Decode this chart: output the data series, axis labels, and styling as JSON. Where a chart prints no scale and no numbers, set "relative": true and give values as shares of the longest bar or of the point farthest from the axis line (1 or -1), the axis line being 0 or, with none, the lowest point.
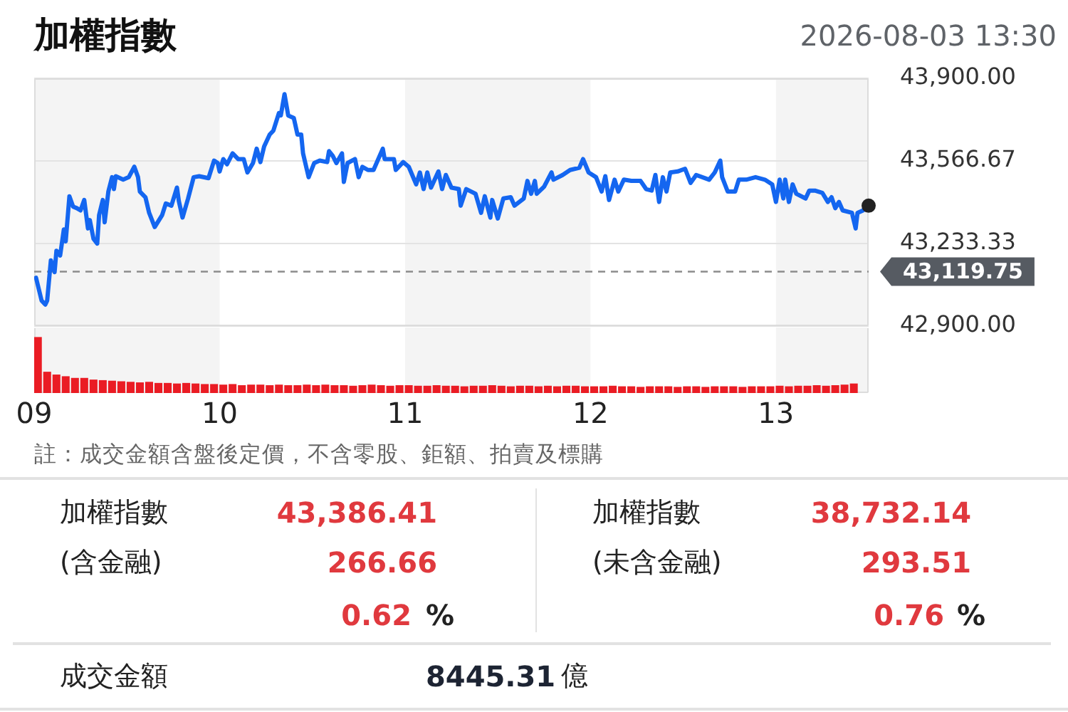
{
  "chart_data": [
    {
      "type": "line",
      "title": "加權指數",
      "subtitle": "2026-08-03 13:30",
      "x": [
        9.01,
        9.04,
        9.06,
        9.07,
        9.09,
        9.11,
        9.12,
        9.14,
        9.16,
        9.17,
        9.19,
        9.21,
        9.23,
        9.25,
        9.27,
        9.29,
        9.3,
        9.32,
        9.34,
        9.35,
        9.37,
        9.38,
        9.4,
        9.42,
        9.43,
        9.44,
        9.48,
        9.51,
        9.54,
        9.56,
        9.57,
        9.6,
        9.62,
        9.65,
        9.69,
        9.71,
        9.74,
        9.77,
        9.78,
        9.8,
        9.83,
        9.86,
        9.89,
        9.94,
        9.97,
        9.99,
        10,
        10.02,
        10.04,
        10.07,
        10.1,
        10.13,
        10.15,
        10.18,
        10.2,
        10.22,
        10.24,
        10.27,
        10.29,
        10.32,
        10.33,
        10.35,
        10.37,
        10.4,
        10.42,
        10.44,
        10.45,
        10.48,
        10.51,
        10.54,
        10.58,
        10.59,
        10.61,
        10.63,
        10.66,
        10.67,
        10.69,
        10.73,
        10.75,
        10.77,
        10.8,
        10.83,
        10.88,
        10.89,
        10.94,
        10.95,
        10.99,
        11.02,
        11.06,
        11.08,
        11.1,
        11.12,
        11.14,
        11.18,
        11.2,
        11.22,
        11.25,
        11.29,
        11.3,
        11.33,
        11.38,
        11.41,
        11.43,
        11.46,
        11.47,
        11.5,
        11.53,
        11.57,
        11.59,
        11.64,
        11.66,
        11.68,
        11.7,
        11.71,
        11.75,
        11.79,
        11.8,
        11.85,
        11.89,
        11.94,
        11.96,
        11.99,
        12.03,
        12.06,
        12.08,
        12.1,
        12.13,
        12.15,
        12.18,
        12.22,
        12.27,
        12.3,
        12.33,
        12.35,
        12.37,
        12.39,
        12.41,
        12.43,
        12.47,
        12.51,
        12.54,
        12.57,
        12.64,
        12.67,
        12.7,
        12.71,
        12.74,
        12.78,
        12.8,
        12.84,
        12.89,
        12.94,
        12.98,
        13,
        13.02,
        13.04,
        13.05,
        13.07,
        13.09,
        13.11,
        13.16,
        13.18,
        13.21,
        13.25,
        13.28,
        13.3,
        13.32,
        13.34,
        13.36,
        13.41,
        13.43,
        13.44,
        13.47,
        13.5
      ],
      "series": [
        {
          "color": "#1466f0",
          "values": [
            43095,
            43003,
            42987,
            43003,
            43165,
            43118,
            43204,
            43185,
            43290,
            43242,
            43424,
            43382,
            43376,
            43367,
            43409,
            43294,
            43328,
            43252,
            43233,
            43348,
            43409,
            43319,
            43443,
            43501,
            43453,
            43505,
            43491,
            43501,
            43543,
            43501,
            43443,
            43420,
            43357,
            43300,
            43348,
            43395,
            43386,
            43459,
            43405,
            43338,
            43415,
            43501,
            43505,
            43497,
            43568,
            43558,
            43524,
            43574,
            43553,
            43597,
            43574,
            43574,
            43520,
            43558,
            43616,
            43562,
            43625,
            43673,
            43689,
            43760,
            43750,
            43836,
            43750,
            43740,
            43673,
            43673,
            43597,
            43501,
            43558,
            43568,
            43562,
            43606,
            43587,
            43558,
            43597,
            43482,
            43558,
            43574,
            43501,
            43543,
            43530,
            43530,
            43616,
            43574,
            43574,
            43530,
            43562,
            43543,
            43472,
            43520,
            43453,
            43520,
            43459,
            43524,
            43453,
            43510,
            43459,
            43453,
            43386,
            43453,
            43434,
            43357,
            43424,
            43338,
            43409,
            43334,
            43415,
            43420,
            43386,
            43415,
            43486,
            43434,
            43486,
            43434,
            43463,
            43520,
            43491,
            43510,
            43530,
            43539,
            43574,
            43520,
            43501,
            43443,
            43505,
            43409,
            43491,
            43443,
            43491,
            43486,
            43486,
            43453,
            43447,
            43510,
            43401,
            43501,
            43443,
            43520,
            43524,
            43535,
            43478,
            43510,
            43491,
            43520,
            43568,
            43501,
            43443,
            43443,
            43491,
            43491,
            43501,
            43491,
            43472,
            43401,
            43491,
            43415,
            43491,
            43401,
            43472,
            43434,
            43415,
            43447,
            43447,
            43438,
            43401,
            43420,
            43376,
            43401,
            43367,
            43357,
            43294,
            43357,
            43367,
            43386
          ]
        },
        {
          "type": "scatter",
          "color": "#222222",
          "marker": "circle",
          "x": [
            13.5
          ],
          "values": [
            43386
          ]
        }
      ],
      "xlim": [
        9,
        13.5
      ],
      "ylim": [
        42900,
        43900
      ],
      "yticks": [
        {
          "value": 42900,
          "label": "42,900.00"
        },
        {
          "value": 43233.33,
          "label": "43,233.33"
        },
        {
          "value": 43566.67,
          "label": "43,566.67"
        },
        {
          "value": 43900,
          "label": "43,900.00"
        }
      ],
      "ref_lines": [
        {
          "axis": "y",
          "value": 43119.75,
          "label": "43,119.75",
          "color": "#8c8c8c",
          "line_style": "dashed"
        }
      ],
      "bands": [
        {
          "axis": "x",
          "from": 9,
          "to": 10,
          "color": "#f4f4f4"
        },
        {
          "axis": "x",
          "from": 11,
          "to": 12,
          "color": "#f4f4f4"
        },
        {
          "axis": "x",
          "from": 13,
          "to": 13.5,
          "color": "#f4f4f4"
        }
      ],
      "grid": "y",
      "tick_labels": "y",
      "marker": "none"
    },
    {
      "type": "bar",
      "relative": true,
      "x": [
        9.02,
        9.07,
        9.12,
        9.17,
        9.22,
        9.27,
        9.32,
        9.37,
        9.42,
        9.47,
        9.52,
        9.57,
        9.62,
        9.67,
        9.72,
        9.77,
        9.82,
        9.87,
        9.92,
        9.97,
        10.02,
        10.07,
        10.12,
        10.17,
        10.22,
        10.27,
        10.32,
        10.37,
        10.42,
        10.47,
        10.52,
        10.57,
        10.62,
        10.67,
        10.72,
        10.77,
        10.82,
        10.87,
        10.92,
        10.97,
        11.02,
        11.07,
        11.12,
        11.17,
        11.22,
        11.27,
        11.32,
        11.37,
        11.42,
        11.47,
        11.52,
        11.57,
        11.62,
        11.67,
        11.72,
        11.77,
        11.82,
        11.87,
        11.92,
        11.97,
        12.02,
        12.07,
        12.12,
        12.17,
        12.22,
        12.27,
        12.32,
        12.37,
        12.42,
        12.47,
        12.52,
        12.57,
        12.62,
        12.67,
        12.72,
        12.77,
        12.82,
        12.87,
        12.92,
        12.97,
        13.02,
        13.07,
        13.12,
        13.17,
        13.22,
        13.27,
        13.32,
        13.37,
        13.42
      ],
      "values": [
        1,
        0.38,
        0.33,
        0.3,
        0.27,
        0.27,
        0.24,
        0.23,
        0.22,
        0.21,
        0.2,
        0.19,
        0.2,
        0.18,
        0.18,
        0.17,
        0.18,
        0.17,
        0.16,
        0.16,
        0.15,
        0.16,
        0.14,
        0.15,
        0.15,
        0.14,
        0.15,
        0.14,
        0.14,
        0.15,
        0.14,
        0.15,
        0.14,
        0.14,
        0.13,
        0.14,
        0.15,
        0.14,
        0.13,
        0.14,
        0.14,
        0.13,
        0.13,
        0.14,
        0.13,
        0.13,
        0.12,
        0.13,
        0.13,
        0.14,
        0.13,
        0.12,
        0.13,
        0.13,
        0.12,
        0.13,
        0.12,
        0.13,
        0.13,
        0.12,
        0.12,
        0.12,
        0.13,
        0.12,
        0.12,
        0.11,
        0.12,
        0.12,
        0.12,
        0.11,
        0.12,
        0.12,
        0.11,
        0.12,
        0.12,
        0.12,
        0.11,
        0.12,
        0.12,
        0.12,
        0.13,
        0.12,
        0.13,
        0.13,
        0.14,
        0.13,
        0.14,
        0.15,
        0.17
      ],
      "color": "#ea1c24",
      "xlim": [
        9,
        13.5
      ],
      "xticks": [
        {
          "value": 9,
          "label": "09"
        },
        10,
        11,
        12,
        13
      ],
      "bands": [
        {
          "axis": "x",
          "from": 9,
          "to": 10,
          "color": "#f4f4f4"
        },
        {
          "axis": "x",
          "from": 11,
          "to": 12,
          "color": "#f4f4f4"
        },
        {
          "axis": "x",
          "from": 13,
          "to": 13.5,
          "color": "#f4f4f4"
        }
      ],
      "tick_labels": "x",
      "annotations": [
        "註：成交金額含盤後定價，不含零股、鉅額、拍賣及標購"
      ]
    },
    {
      "type": "other",
      "annotations": [
        "加權指數",
        "43,386.41",
        "加權指數",
        "38,732.14",
        "(含金融)",
        "266.66",
        "(未含金融)",
        "293.51",
        "0.62",
        "%",
        "0.76",
        "%",
        "成交金額",
        "8445.31",
        "億"
      ]
    }
  ]
}
